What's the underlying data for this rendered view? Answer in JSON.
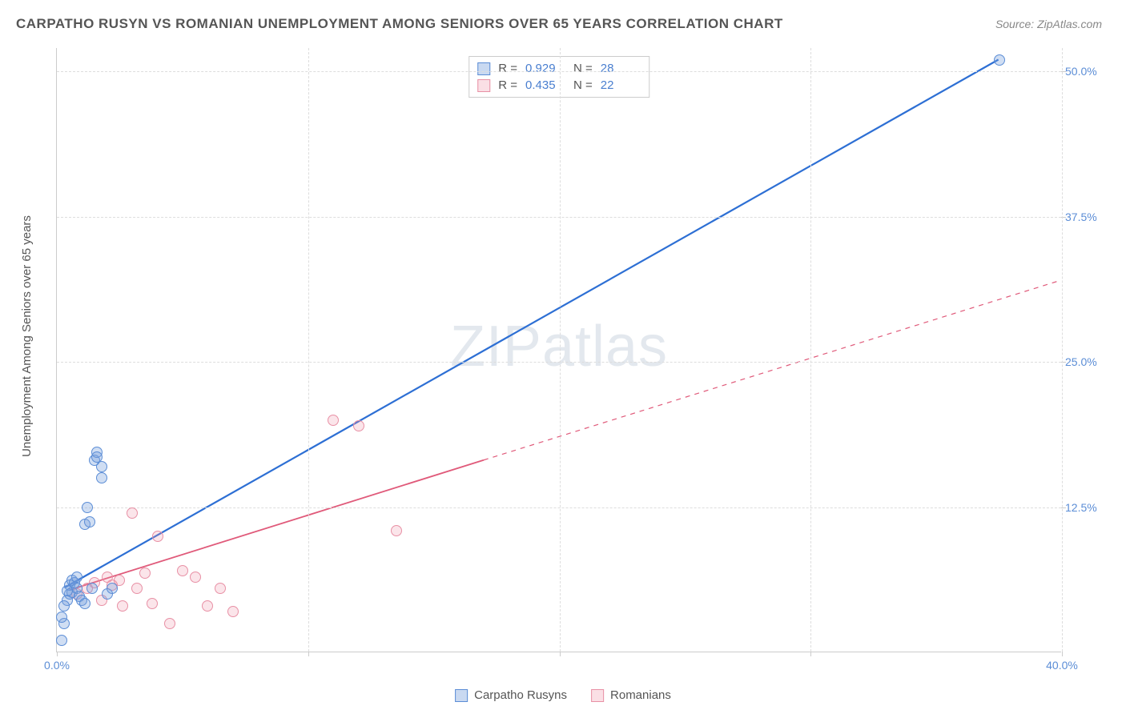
{
  "title": "CARPATHO RUSYN VS ROMANIAN UNEMPLOYMENT AMONG SENIORS OVER 65 YEARS CORRELATION CHART",
  "source": "Source: ZipAtlas.com",
  "ylabel": "Unemployment Among Seniors over 65 years",
  "watermark": {
    "part1": "ZIP",
    "part2": "atlas"
  },
  "chart": {
    "type": "scatter",
    "xlim": [
      0,
      40
    ],
    "ylim": [
      0,
      52
    ],
    "xticks": [
      0,
      10,
      20,
      30,
      40
    ],
    "xtick_labels": [
      "0.0%",
      "",
      "",
      "",
      "40.0%"
    ],
    "yticks": [
      12.5,
      25.0,
      37.5,
      50.0
    ],
    "ytick_labels": [
      "12.5%",
      "25.0%",
      "37.5%",
      "50.0%"
    ],
    "grid_color": "#dddddd",
    "background_color": "#ffffff",
    "axis_color": "#cccccc"
  },
  "series": {
    "blue": {
      "label": "Carpatho Rusyns",
      "color_fill": "rgba(120,160,220,0.35)",
      "color_stroke": "#5b8dd6",
      "trend_color": "#2d6fd4",
      "trend_width": 2.2,
      "R": "0.929",
      "N": "28",
      "points": [
        [
          0.2,
          1.0
        ],
        [
          0.3,
          2.5
        ],
        [
          0.4,
          4.5
        ],
        [
          0.5,
          5.0
        ],
        [
          0.5,
          5.8
        ],
        [
          0.6,
          6.2
        ],
        [
          0.6,
          5.2
        ],
        [
          0.7,
          6.0
        ],
        [
          0.8,
          6.5
        ],
        [
          0.8,
          5.5
        ],
        [
          0.9,
          4.8
        ],
        [
          1.0,
          4.5
        ],
        [
          1.1,
          4.2
        ],
        [
          1.1,
          11.0
        ],
        [
          1.2,
          12.5
        ],
        [
          1.3,
          11.2
        ],
        [
          1.4,
          5.5
        ],
        [
          1.5,
          16.5
        ],
        [
          1.6,
          17.2
        ],
        [
          1.6,
          16.8
        ],
        [
          1.8,
          16.0
        ],
        [
          1.8,
          15.0
        ],
        [
          2.0,
          5.0
        ],
        [
          2.2,
          5.5
        ],
        [
          0.4,
          5.3
        ],
        [
          0.3,
          4.0
        ],
        [
          0.2,
          3.0
        ],
        [
          37.5,
          51.0
        ]
      ],
      "trend": {
        "x1": 0.3,
        "y1": 5.5,
        "x2": 37.5,
        "y2": 51.0
      }
    },
    "pink": {
      "label": "Romanians",
      "color_fill": "rgba(240,150,170,0.25)",
      "color_stroke": "#e890a5",
      "trend_color": "#e05a7a",
      "trend_width": 1.8,
      "R": "0.435",
      "N": "22",
      "points": [
        [
          0.8,
          5.0
        ],
        [
          1.2,
          5.5
        ],
        [
          1.5,
          6.0
        ],
        [
          1.8,
          4.5
        ],
        [
          2.0,
          6.5
        ],
        [
          2.2,
          5.8
        ],
        [
          2.5,
          6.2
        ],
        [
          2.6,
          4.0
        ],
        [
          3.0,
          12.0
        ],
        [
          3.2,
          5.5
        ],
        [
          3.5,
          6.8
        ],
        [
          3.8,
          4.2
        ],
        [
          4.0,
          10.0
        ],
        [
          4.5,
          2.5
        ],
        [
          5.0,
          7.0
        ],
        [
          5.5,
          6.5
        ],
        [
          6.0,
          4.0
        ],
        [
          6.5,
          5.5
        ],
        [
          7.0,
          3.5
        ],
        [
          11.0,
          20.0
        ],
        [
          12.0,
          19.5
        ],
        [
          13.5,
          10.5
        ]
      ],
      "trend_solid": {
        "x1": 0.5,
        "y1": 5.3,
        "x2": 17.0,
        "y2": 16.5
      },
      "trend_dashed": {
        "x1": 17.0,
        "y1": 16.5,
        "x2": 40.0,
        "y2": 32.0
      }
    }
  },
  "stats_legend": {
    "R_label": "R =",
    "N_label": "N ="
  },
  "bottom_legend": [
    {
      "swatch": "blue",
      "label": "Carpatho Rusyns"
    },
    {
      "swatch": "pink",
      "label": "Romanians"
    }
  ]
}
